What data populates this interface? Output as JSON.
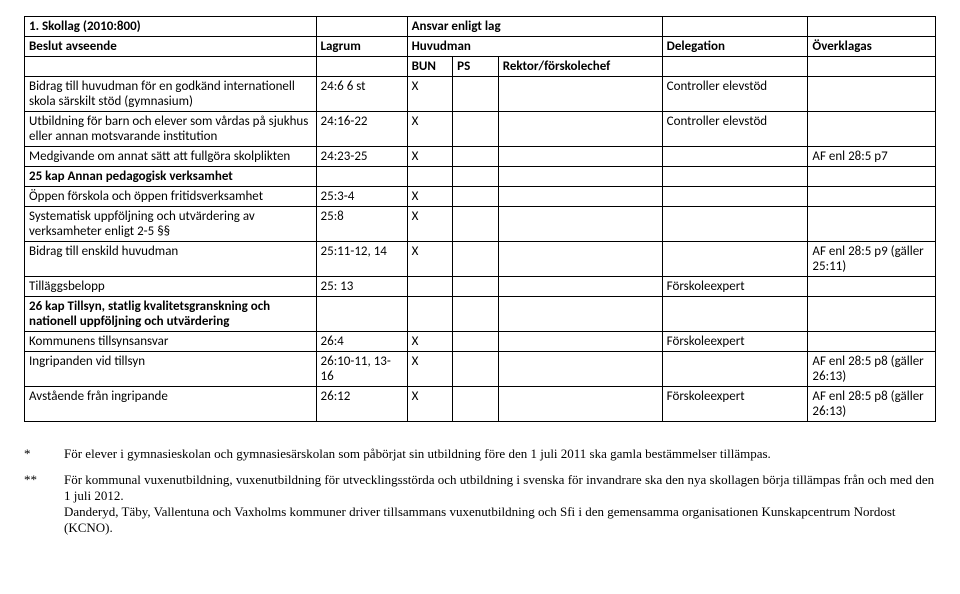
{
  "header": {
    "section_title": "1. Skollag (2010:800)",
    "responsibility_title": "Ansvar enligt lag",
    "col_beslut": "Beslut avseende",
    "col_lagrum": "Lagrum",
    "col_huvudman": "Huvudman",
    "col_delegation": "Delegation",
    "col_overklagas": "Överklagas",
    "col_bun": "BUN",
    "col_ps": "PS",
    "col_rektor": "Rektor/förskolechef"
  },
  "rows": [
    {
      "desc": "Bidrag till huvudman för en godkänd internationell skola särskilt stöd (gymnasium)",
      "lagrum": "24:6 6 st",
      "bun": "X",
      "ps": "",
      "rektor": "",
      "delegation": "Controller elevstöd",
      "overk": "",
      "bold": false
    },
    {
      "desc": "Utbildning för barn och elever som vårdas på sjukhus eller annan motsvarande institution",
      "lagrum": "24:16-22",
      "bun": "X",
      "ps": "",
      "rektor": "",
      "delegation": "Controller elevstöd",
      "overk": "",
      "bold": false
    },
    {
      "desc": "Medgivande om annat sätt att fullgöra skolplikten",
      "lagrum": "24:23-25",
      "bun": "X",
      "ps": "",
      "rektor": "",
      "delegation": "",
      "overk": "AF enl 28:5 p7",
      "bold": false
    },
    {
      "desc": "25 kap Annan pedagogisk verksamhet",
      "lagrum": "",
      "bun": "",
      "ps": "",
      "rektor": "",
      "delegation": "",
      "overk": "",
      "bold": true
    },
    {
      "desc": "Öppen förskola och öppen fritidsverksamhet",
      "lagrum": "25:3-4",
      "bun": "X",
      "ps": "",
      "rektor": "",
      "delegation": "",
      "overk": "",
      "bold": false
    },
    {
      "desc": "Systematisk uppföljning och utvärdering av verksamheter enligt 2-5 §§",
      "lagrum": "25:8",
      "bun": "X",
      "ps": "",
      "rektor": "",
      "delegation": "",
      "overk": "",
      "bold": false
    },
    {
      "desc": "Bidrag till enskild huvudman",
      "lagrum": "25:11-12, 14",
      "bun": "X",
      "ps": "",
      "rektor": "",
      "delegation": "",
      "overk": "AF enl 28:5 p9 (gäller 25:11)",
      "bold": false
    },
    {
      "desc": "Tilläggsbelopp",
      "lagrum": "25: 13",
      "bun": "",
      "ps": "",
      "rektor": "",
      "delegation": "Förskoleexpert",
      "overk": "",
      "bold": false
    },
    {
      "desc": "26 kap Tillsyn, statlig kvalitetsgranskning och nationell uppföljning och utvärdering",
      "lagrum": "",
      "bun": "",
      "ps": "",
      "rektor": "",
      "delegation": "",
      "overk": "",
      "bold": true
    },
    {
      "desc": "Kommunens tillsynsansvar",
      "lagrum": "26:4",
      "bun": "X",
      "ps": "",
      "rektor": "",
      "delegation": "Förskoleexpert",
      "overk": "",
      "bold": false
    },
    {
      "desc": "Ingripanden vid tillsyn",
      "lagrum": "26:10-11, 13-16",
      "bun": "X",
      "ps": "",
      "rektor": "",
      "delegation": "",
      "overk": "AF enl 28:5 p8 (gäller 26:13)",
      "bold": false
    },
    {
      "desc": "Avstående från ingripande",
      "lagrum": "26:12",
      "bun": "X",
      "ps": "",
      "rektor": "",
      "delegation": "Förskoleexpert",
      "overk": "AF enl 28:5 p8 (gäller 26:13)",
      "bold": false
    }
  ],
  "footnotes": {
    "star1_mark": "*",
    "star1_text": "För elever i gymnasieskolan och gymnasiesärskolan som påbörjat sin utbildning före den 1 juli 2011 ska gamla bestämmelser tillämpas.",
    "star2_mark": "**",
    "star2_text": "För kommunal vuxenutbildning, vuxenutbildning för utvecklingsstörda och utbildning i svenska för invandrare ska den nya  skollagen börja tillämpas från och med den 1 juli 2012.\nDanderyd, Täby, Vallentuna och Vaxholms kommuner driver tillsammans vuxenutbildning och Sfi i den gemensamma organisationen Kunskapcentrum Nordost (KCNO)."
  }
}
